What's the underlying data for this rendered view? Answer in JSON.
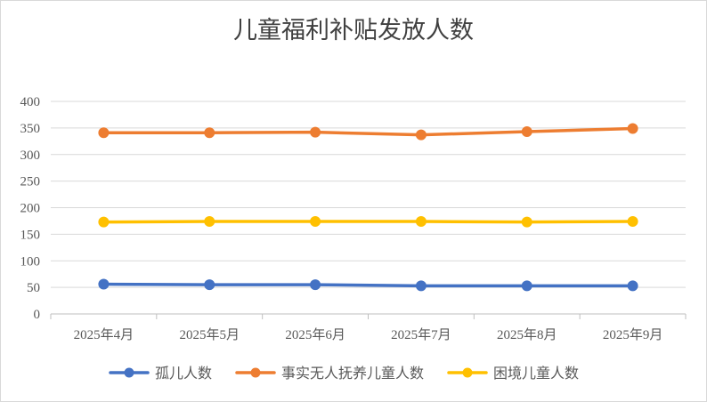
{
  "chart_data": {
    "type": "line",
    "title": "儿童福利补贴发放人数",
    "xlabel": "",
    "ylabel": "",
    "categories": [
      "2025年4月",
      "2025年5月",
      "2025年6月",
      "2025年7月",
      "2025年8月",
      "2025年9月"
    ],
    "ylim": [
      0,
      400
    ],
    "yticks": [
      0,
      50,
      100,
      150,
      200,
      250,
      300,
      350,
      400
    ],
    "grid": true,
    "legend_position": "bottom",
    "series": [
      {
        "name": "孤儿人数",
        "color": "#4472C4",
        "values": [
          56,
          55,
          55,
          53,
          53,
          53
        ]
      },
      {
        "name": "事实无人抚养儿童人数",
        "color": "#ED7D31",
        "values": [
          341,
          341,
          342,
          337,
          343,
          349
        ]
      },
      {
        "name": "困境儿童人数",
        "color": "#FFC000",
        "values": [
          173,
          174,
          174,
          174,
          173,
          174
        ]
      }
    ]
  }
}
